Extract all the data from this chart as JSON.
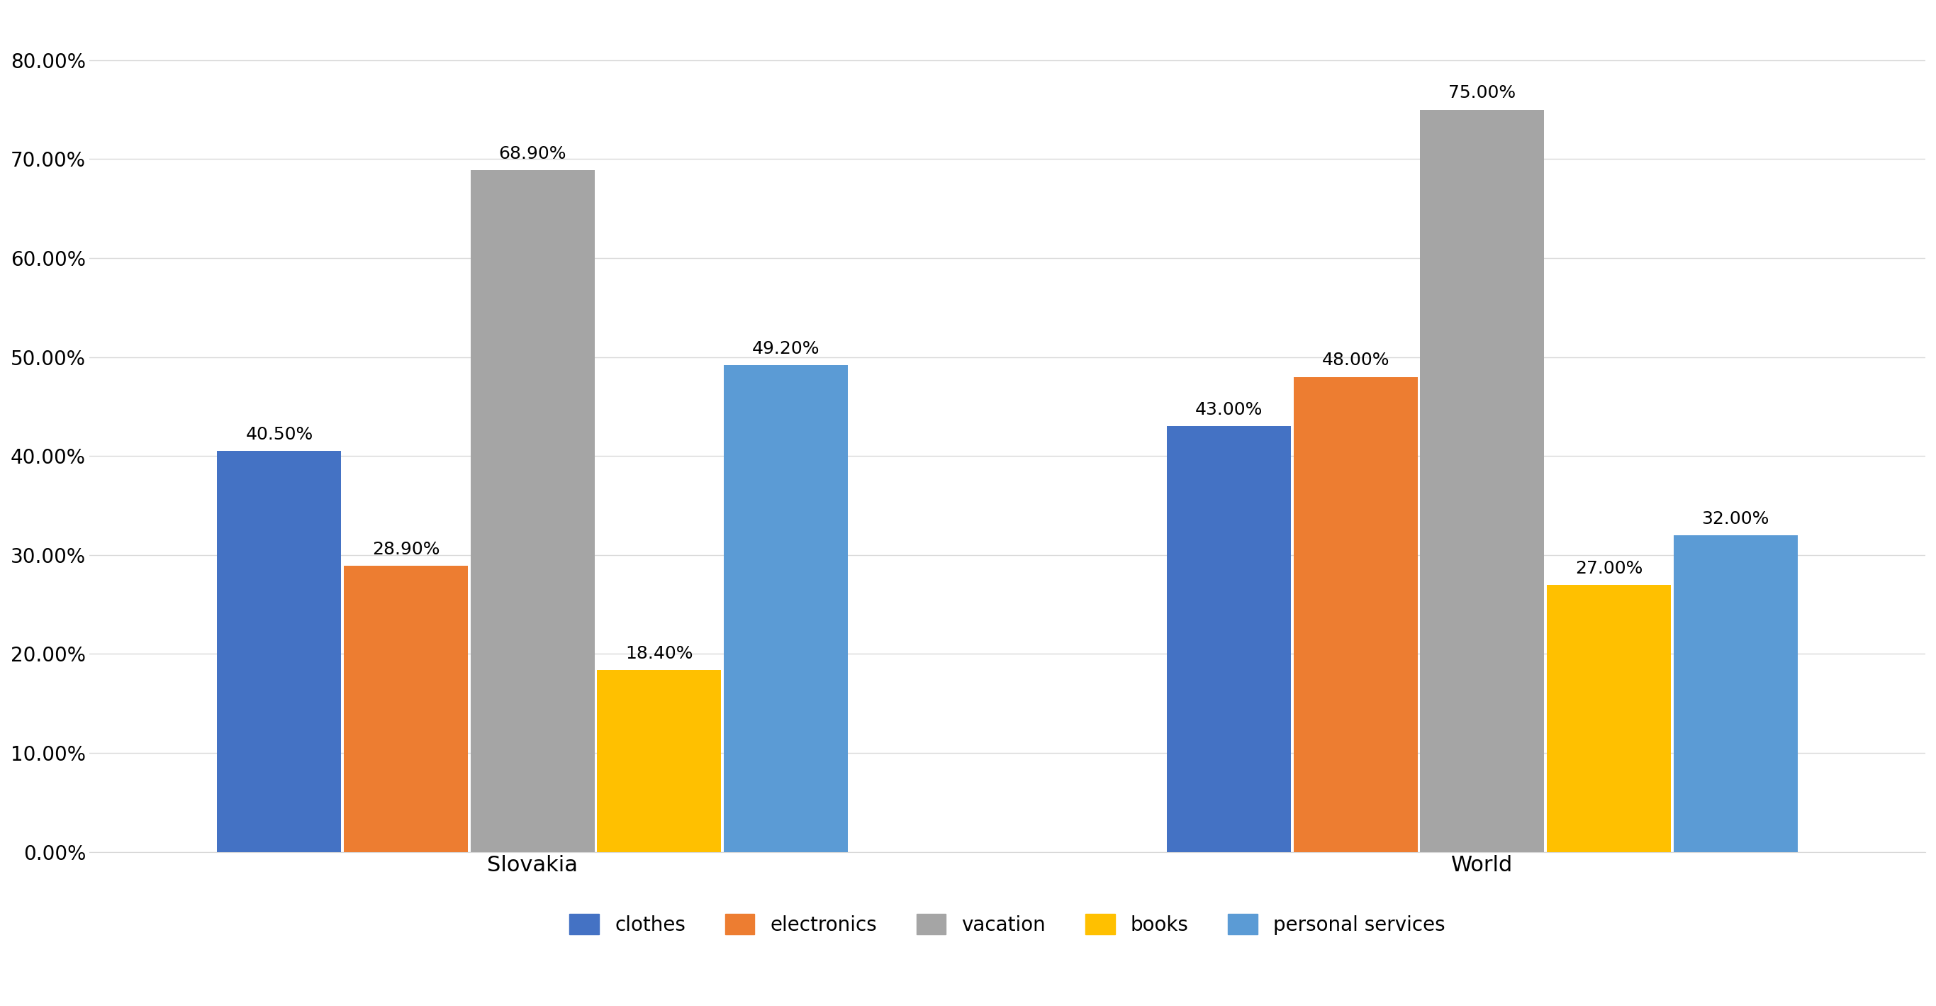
{
  "groups": [
    "Slovakia",
    "World"
  ],
  "categories": [
    "clothes",
    "electronics",
    "vacation",
    "books",
    "personal services"
  ],
  "values": {
    "Slovakia": [
      40.5,
      28.9,
      68.9,
      18.4,
      49.2
    ],
    "World": [
      43.0,
      48.0,
      75.0,
      27.0,
      32.0
    ]
  },
  "labels": {
    "Slovakia": [
      "40.50%",
      "28.90%",
      "68.90%",
      "18.40%",
      "49.20%"
    ],
    "World": [
      "43.00%",
      "48.00%",
      "75.00%",
      "27.00%",
      "32.00%"
    ]
  },
  "colors": [
    "#4472C4",
    "#ED7D31",
    "#A5A5A5",
    "#FFC000",
    "#5B9BD5"
  ],
  "ylim": [
    0,
    85
  ],
  "yticks": [
    0,
    10,
    20,
    30,
    40,
    50,
    60,
    70,
    80
  ],
  "ytick_labels": [
    "0.00%",
    "10.00%",
    "20.00%",
    "30.00%",
    "40.00%",
    "50.00%",
    "60.00%",
    "70.00%",
    "80.00%"
  ],
  "bar_width": 0.8,
  "group_centers": [
    3.0,
    9.0
  ],
  "background_color": "#FFFFFF",
  "grid_color": "#D9D9D9",
  "tick_fontsize": 20,
  "legend_fontsize": 20,
  "annotation_fontsize": 18,
  "group_label_fontsize": 22
}
